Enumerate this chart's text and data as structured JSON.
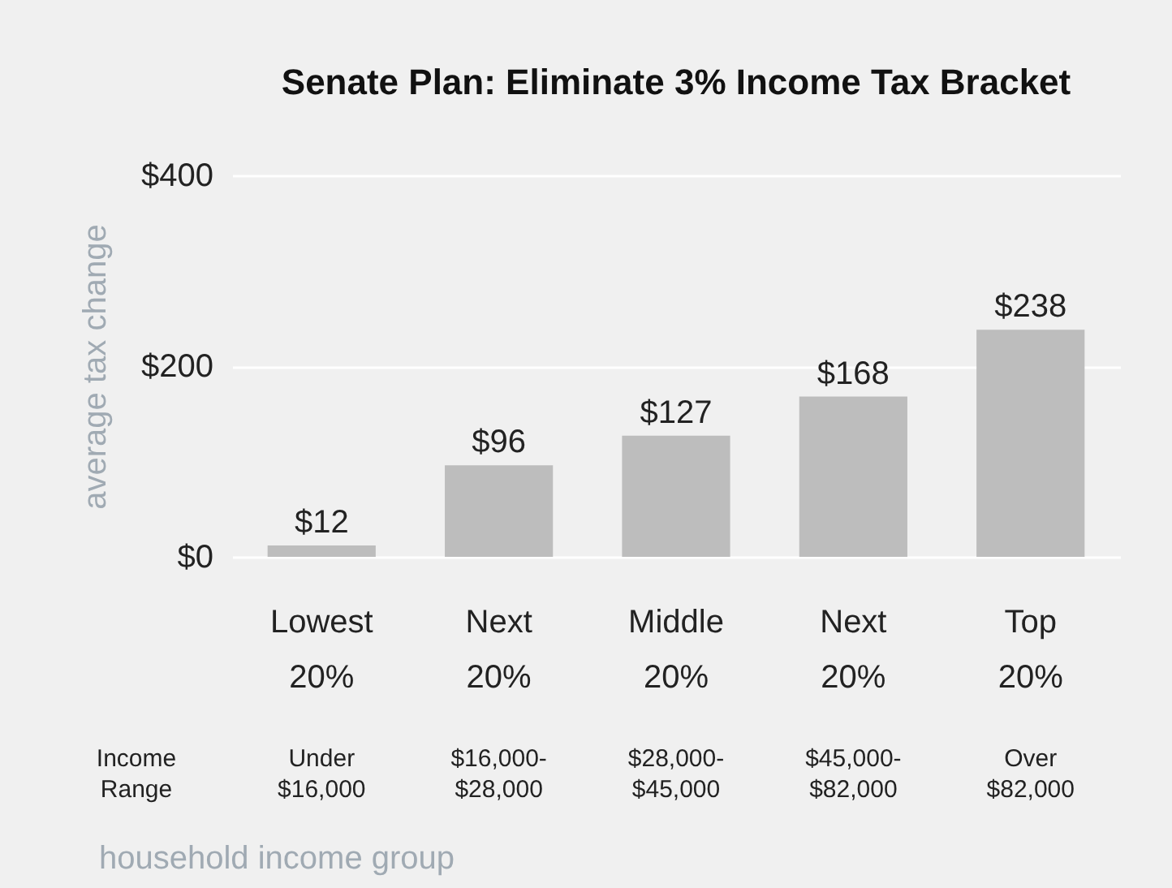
{
  "chart_data": {
    "type": "bar",
    "title": "Senate Plan: Eliminate 3% Income Tax Bracket",
    "categories": [
      "Lowest 20%",
      "Next 20%",
      "Middle 20%",
      "Next 20%",
      "Top 20%"
    ],
    "values": [
      12,
      96,
      127,
      168,
      238
    ],
    "value_labels": [
      "$12",
      "$96",
      "$127",
      "$168",
      "$238"
    ],
    "color": "#bdbdbd",
    "ylim": [
      0,
      400
    ],
    "yticks": [
      {
        "value": 0,
        "label": "$0"
      },
      {
        "value": 200,
        "label": "$200"
      },
      {
        "value": 400,
        "label": "$400"
      }
    ],
    "grid": "y",
    "ylabel": "average tax change",
    "xlabel": "household income group",
    "annotations": [
      "Income Range",
      "Under $16,000",
      "$16,000-$28,000",
      "$28,000-$45,000",
      "$45,000-$82,000",
      "Over $82,000"
    ]
  }
}
